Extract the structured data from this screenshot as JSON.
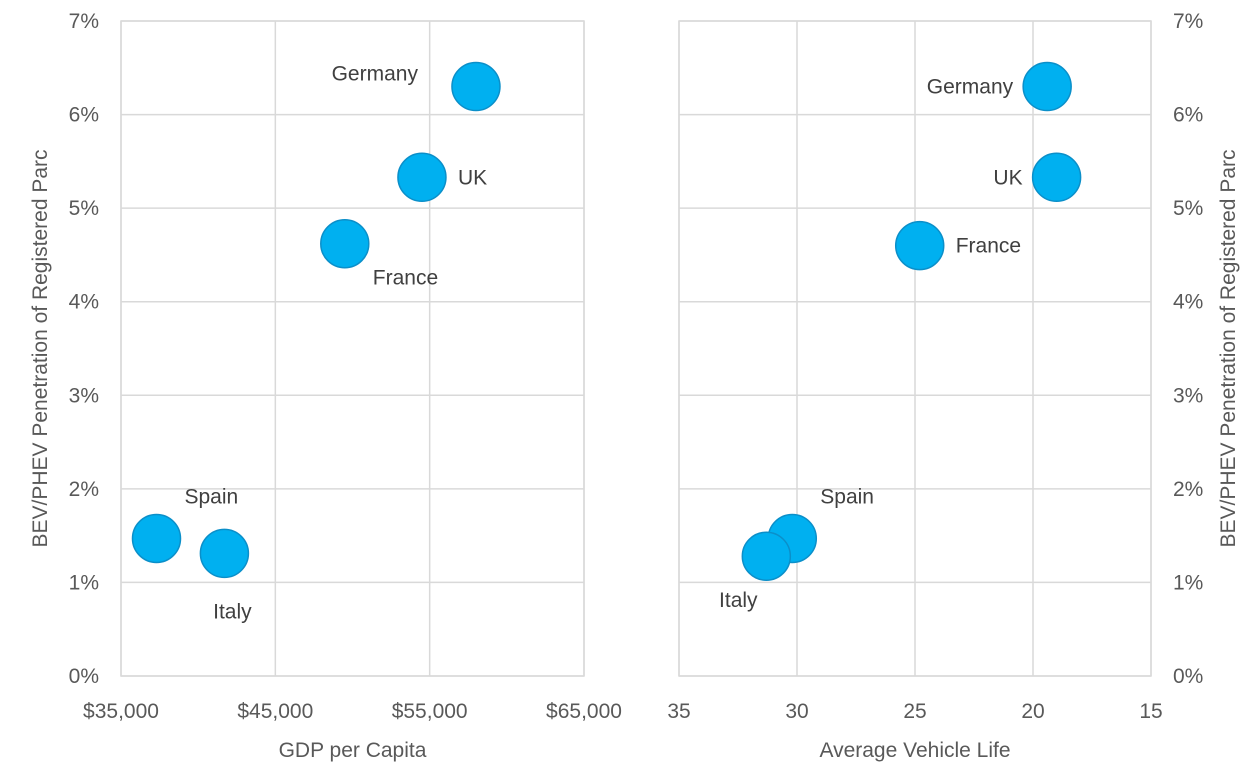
{
  "chart_data": [
    {
      "type": "scatter",
      "xlabel": "GDP per Capita",
      "ylabel": "BEV/PHEV Penetration of Registered Parc",
      "xlim": [
        35000,
        65000
      ],
      "ylim": [
        0,
        7
      ],
      "x_ticks": [
        "$35,000",
        "$45,000",
        "$55,000",
        "$65,000"
      ],
      "y_ticks": [
        "0%",
        "1%",
        "2%",
        "3%",
        "4%",
        "5%",
        "6%",
        "7%"
      ],
      "grid": true,
      "reversed_x": false,
      "color": "#00b0f0",
      "points": [
        {
          "label": "Germany",
          "x": 58000,
          "y": 6.3,
          "label_pos": "left-above"
        },
        {
          "label": "UK",
          "x": 54500,
          "y": 5.33,
          "label_pos": "right"
        },
        {
          "label": "France",
          "x": 49500,
          "y": 4.62,
          "label_pos": "right-below"
        },
        {
          "label": "Spain",
          "x": 37300,
          "y": 1.47,
          "label_pos": "right-above"
        },
        {
          "label": "Italy",
          "x": 41700,
          "y": 1.31,
          "label_pos": "below"
        }
      ]
    },
    {
      "type": "scatter",
      "xlabel": "Average Vehicle Life",
      "ylabel": "BEV/PHEV Penetration of Registered Parc",
      "xlim": [
        35,
        15
      ],
      "ylim": [
        0,
        7
      ],
      "x_ticks": [
        "35",
        "30",
        "25",
        "20",
        "15"
      ],
      "y_ticks": [
        "0%",
        "1%",
        "2%",
        "3%",
        "4%",
        "5%",
        "6%",
        "7%"
      ],
      "grid": true,
      "reversed_x": true,
      "color": "#00b0f0",
      "points": [
        {
          "label": "Germany",
          "x": 19.4,
          "y": 6.3,
          "label_pos": "left"
        },
        {
          "label": "UK",
          "x": 19.0,
          "y": 5.33,
          "label_pos": "left"
        },
        {
          "label": "France",
          "x": 24.8,
          "y": 4.6,
          "label_pos": "right"
        },
        {
          "label": "Spain",
          "x": 30.2,
          "y": 1.47,
          "label_pos": "right-above"
        },
        {
          "label": "Italy",
          "x": 31.3,
          "y": 1.28,
          "label_pos": "left-below"
        }
      ]
    }
  ]
}
